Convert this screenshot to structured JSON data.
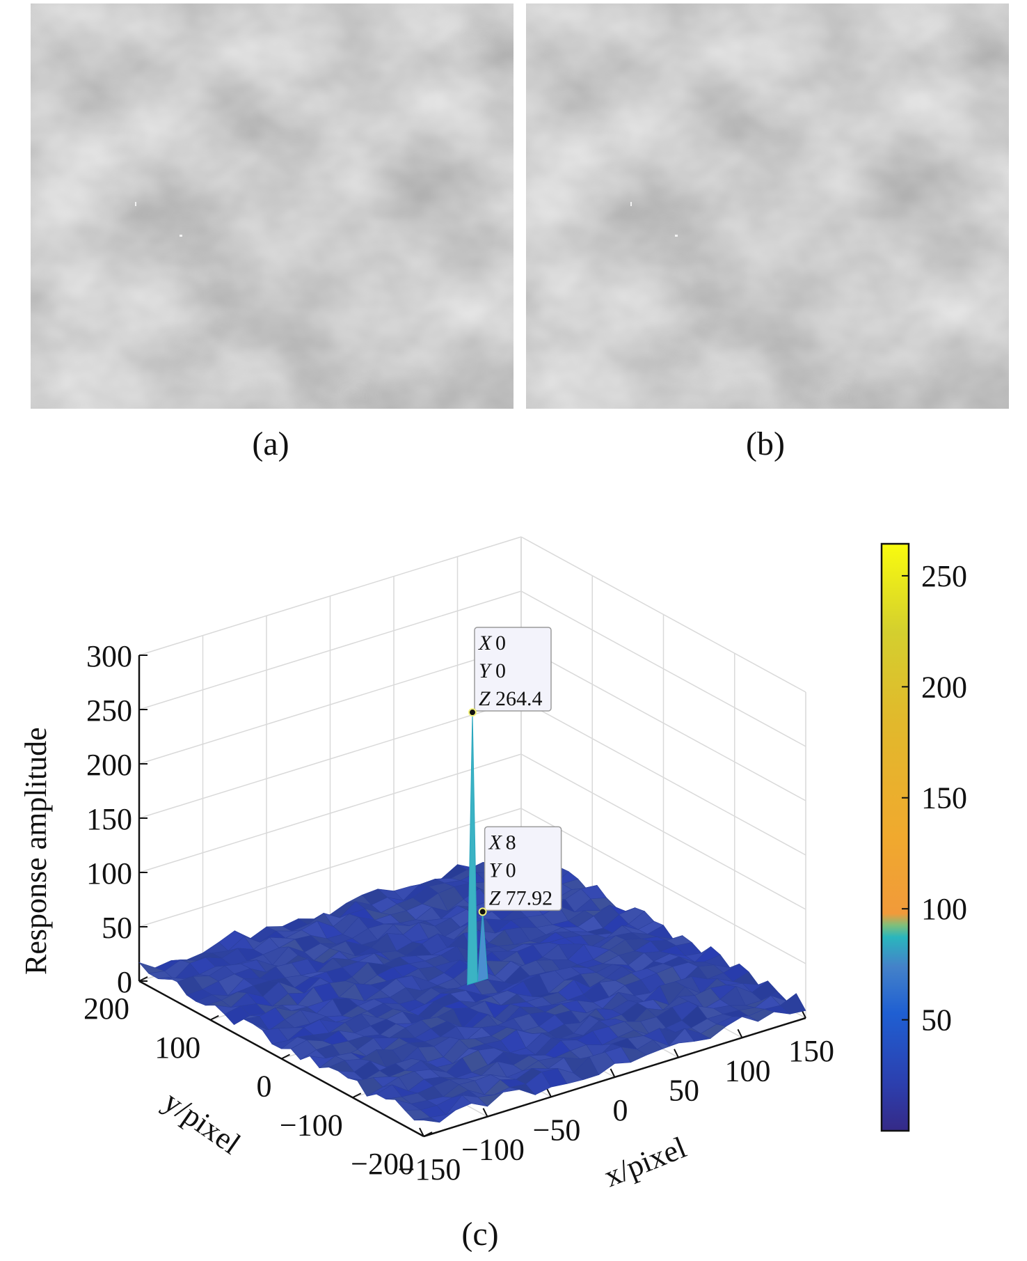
{
  "panels": {
    "a": {
      "label": "(a)"
    },
    "b": {
      "label": "(b)"
    },
    "c": {
      "label": "(c)"
    }
  },
  "chart_data": {
    "type": "surface",
    "xlabel": "x/pixel",
    "ylabel": "y/pixel",
    "zlabel": "Response amplitude",
    "xlim": [
      -150,
      150
    ],
    "ylim": [
      -200,
      200
    ],
    "zlim": [
      0,
      300
    ],
    "x_ticks": [
      "−150",
      "−100",
      "−50",
      "0",
      "50",
      "100",
      "150"
    ],
    "y_ticks": [
      "−200",
      "−100",
      "0",
      "100",
      "200"
    ],
    "z_ticks": [
      "0",
      "50",
      "100",
      "150",
      "200",
      "250",
      "300"
    ],
    "grid": true,
    "colormap": "parula",
    "colorbar": {
      "ticks": [
        "50",
        "100",
        "150",
        "200",
        "250"
      ],
      "range": [
        0,
        264.4
      ]
    },
    "noise_floor": 15,
    "peaks": [
      {
        "x": 0,
        "y": 0,
        "z": 264.4
      },
      {
        "x": 8,
        "y": 0,
        "z": 77.92
      }
    ],
    "datatips": [
      {
        "X": "0",
        "Y": "0",
        "Z": "264.4"
      },
      {
        "X": "8",
        "Y": "0",
        "Z": "77.92"
      }
    ]
  }
}
